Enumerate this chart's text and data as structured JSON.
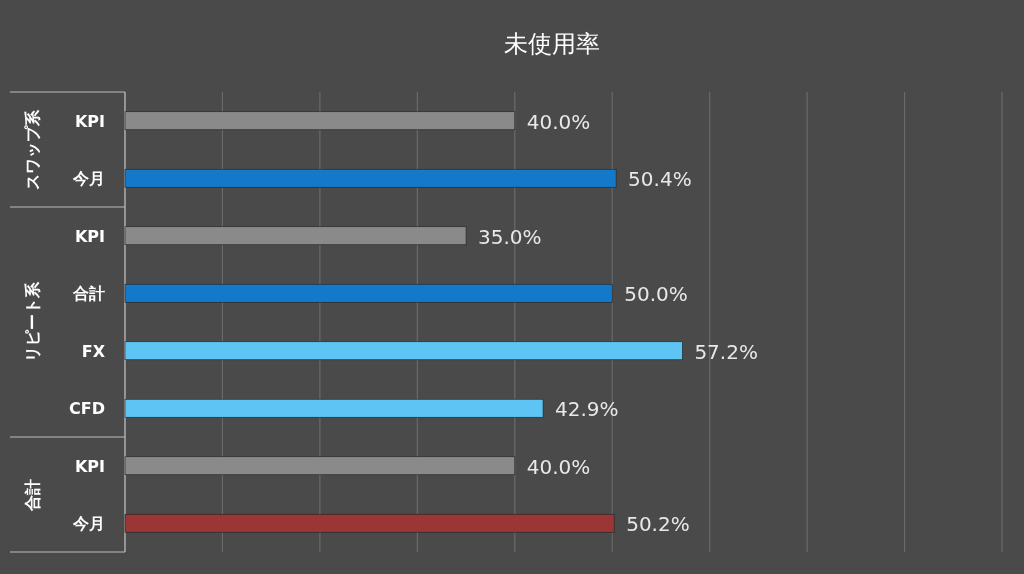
{
  "chart_data": {
    "type": "bar",
    "orientation": "horizontal",
    "title": "未使用率",
    "categories": [
      "KPI",
      "今月",
      "KPI",
      "合計",
      "FX",
      "CFD",
      "KPI",
      "今月"
    ],
    "values": [
      40.0,
      50.4,
      35.0,
      50.0,
      57.2,
      42.9,
      40.0,
      50.2
    ],
    "colors": [
      "#8a8a8a",
      "#1479c8",
      "#8a8a8a",
      "#1479c8",
      "#5ec4f4",
      "#5ec4f4",
      "#8a8a8a",
      "#9a3636"
    ],
    "value_labels": [
      "40.0%",
      "50.4%",
      "35.0%",
      "50.0%",
      "57.2%",
      "42.9%",
      "40.0%",
      "50.2%"
    ],
    "xlim": [
      0,
      90
    ],
    "xticks": [
      {
        "value": 0,
        "label": null
      },
      {
        "value": 10,
        "label": null
      },
      {
        "value": 20,
        "label": null
      },
      {
        "value": 30,
        "label": null
      },
      {
        "value": 40,
        "label": null
      },
      {
        "value": 50,
        "label": null
      },
      {
        "value": 60,
        "label": null
      },
      {
        "value": 70,
        "label": null
      },
      {
        "value": 80,
        "label": null
      },
      {
        "value": 90,
        "label": null
      }
    ],
    "grid": "x",
    "tick_labels": "y",
    "annotations": [
      "スワップ系",
      "リピート系",
      "合計"
    ]
  }
}
